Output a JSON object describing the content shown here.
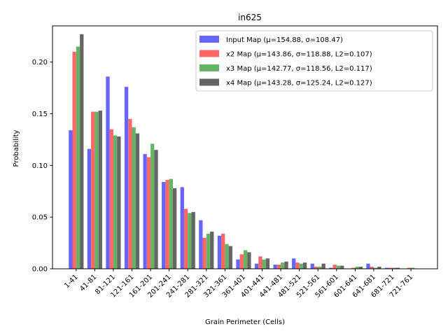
{
  "chart_data": {
    "type": "bar",
    "title": "in625",
    "xlabel": "Grain Perimeter (Cells)",
    "ylabel": "Probability",
    "ylim": [
      0,
      0.235
    ],
    "yticks": [
      "0.00",
      "0.05",
      "0.10",
      "0.15",
      "0.20"
    ],
    "grid": false,
    "legend_position": "top-right",
    "categories": [
      "1-41",
      "41-81",
      "81-121",
      "121-161",
      "161-201",
      "201-241",
      "241-281",
      "281-321",
      "321-361",
      "361-401",
      "401-441",
      "441-481",
      "481-521",
      "521-561",
      "561-601",
      "601-641",
      "641-681",
      "681-721",
      "721-761"
    ],
    "series": [
      {
        "name": "Input Map (μ=154.88, σ=108.47)",
        "color": "#6666ff",
        "values": [
          0.134,
          0.116,
          0.186,
          0.176,
          0.111,
          0.084,
          0.079,
          0.047,
          0.032,
          0.009,
          0.005,
          0.004,
          0.01,
          0.005,
          0.001,
          0.0,
          0.005,
          0.001,
          0.0
        ]
      },
      {
        "name": "x2 Map (μ=143.86, σ=118.88, L2=0.107)",
        "color": "#ff6666",
        "values": [
          0.21,
          0.152,
          0.135,
          0.145,
          0.108,
          0.086,
          0.058,
          0.03,
          0.034,
          0.014,
          0.012,
          0.004,
          0.006,
          0.002,
          0.004,
          0.001,
          0.002,
          0.001,
          0.001
        ]
      },
      {
        "name": "x3 Map (μ=142.77, σ=118.56, L2=0.117)",
        "color": "#66b366",
        "values": [
          0.215,
          0.152,
          0.129,
          0.137,
          0.121,
          0.087,
          0.054,
          0.034,
          0.024,
          0.018,
          0.009,
          0.006,
          0.005,
          0.002,
          0.003,
          0.002,
          0.001,
          0.001,
          0.001
        ]
      },
      {
        "name": "x4 Map (μ=143.28, σ=125.24, L2=0.127)",
        "color": "#666666",
        "values": [
          0.227,
          0.153,
          0.128,
          0.131,
          0.115,
          0.078,
          0.055,
          0.036,
          0.022,
          0.016,
          0.01,
          0.007,
          0.006,
          0.005,
          0.003,
          0.002,
          0.002,
          0.001,
          0.0
        ]
      }
    ]
  }
}
